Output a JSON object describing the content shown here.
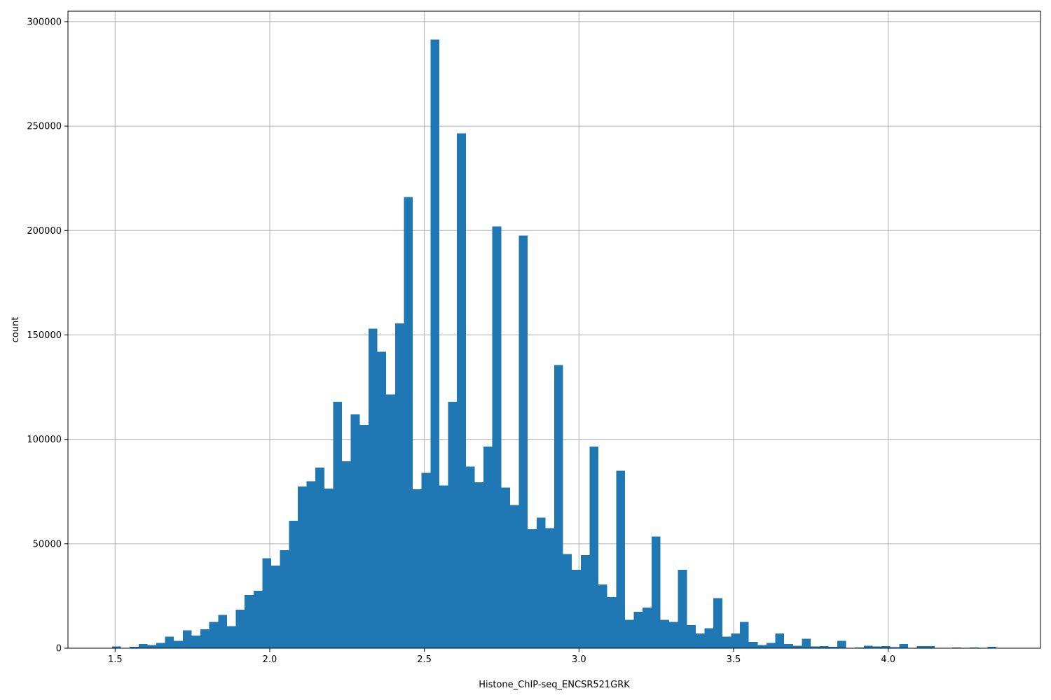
{
  "chart_data": {
    "type": "bar",
    "xlabel": "Histone_ChIP-seq_ENCSR521GRK",
    "ylabel": "count",
    "grid": true,
    "bar_color": "#1f77b4",
    "grid_color": "#b0b0b0",
    "xlim": [
      1.3475,
      4.4925
    ],
    "ylim": [
      0,
      305000
    ],
    "xticks": [
      {
        "value": 1.5,
        "label": "1.5"
      },
      {
        "value": 2.0,
        "label": "2.0"
      },
      {
        "value": 2.5,
        "label": "2.5"
      },
      {
        "value": 3.0,
        "label": "3.0"
      },
      {
        "value": 3.5,
        "label": "3.5"
      },
      {
        "value": 4.0,
        "label": "4.0"
      }
    ],
    "yticks": [
      {
        "value": 0,
        "label": "0"
      },
      {
        "value": 50000,
        "label": "50000"
      },
      {
        "value": 100000,
        "label": "100000"
      },
      {
        "value": 150000,
        "label": "150000"
      },
      {
        "value": 200000,
        "label": "200000"
      },
      {
        "value": 250000,
        "label": "250000"
      },
      {
        "value": 300000,
        "label": "300000"
      }
    ],
    "bin_start": 1.49,
    "bin_width": 0.0286,
    "values": [
      800,
      0,
      600,
      2000,
      1500,
      2500,
      5500,
      3500,
      8500,
      6000,
      9000,
      12500,
      16000,
      10500,
      18500,
      25500,
      27500,
      43000,
      39500,
      47000,
      61000,
      77500,
      80000,
      86500,
      76500,
      118000,
      89500,
      112000,
      107000,
      153000,
      142000,
      121500,
      155500,
      216000,
      76000,
      84000,
      291500,
      78000,
      118000,
      246500,
      87000,
      79500,
      96500,
      202000,
      77000,
      68500,
      197500,
      57000,
      62500,
      57500,
      135500,
      45000,
      37500,
      44500,
      96500,
      30500,
      24500,
      85000,
      13500,
      17500,
      19500,
      53500,
      13500,
      12500,
      37500,
      11000,
      7000,
      9500,
      24000,
      5500,
      7000,
      12500,
      3000,
      1500,
      2500,
      7000,
      2000,
      1200,
      4500,
      800,
      1000,
      600,
      3500,
      0,
      300,
      1200,
      800,
      1000,
      500,
      2000,
      0,
      1000,
      1000,
      0,
      0,
      300,
      0,
      300,
      0,
      600
    ]
  }
}
